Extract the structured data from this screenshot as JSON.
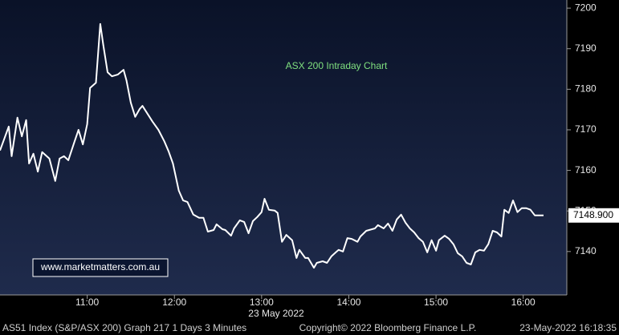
{
  "chart_data": {
    "type": "line",
    "title": "ASX 200 Intraday Chart",
    "watermark": "www.marketmatters.com.au",
    "x_label": "23 May 2022",
    "footer": {
      "left": "AS51 Index (S&P/ASX 200) Graph 217 1 Days 3 Minutes",
      "center": "Copyright© 2022 Bloomberg Finance L.P.",
      "right": "23-May-2022 16:18:35"
    },
    "last_value": {
      "value": 7148.9,
      "label": "7148.900"
    },
    "xlim": [
      600,
      990
    ],
    "xticks": [
      {
        "value": 660,
        "label": "11:00"
      },
      {
        "value": 720,
        "label": "12:00"
      },
      {
        "value": 780,
        "label": "13:00"
      },
      {
        "value": 840,
        "label": "14:00"
      },
      {
        "value": 900,
        "label": "15:00"
      },
      {
        "value": 960,
        "label": "16:00"
      }
    ],
    "ylim": [
      7129.3,
      7202
    ],
    "yticks": [
      7140,
      7150,
      7160,
      7170,
      7180,
      7190,
      7200
    ],
    "x": [
      600,
      606,
      608,
      612,
      615,
      618,
      620,
      623,
      626,
      629,
      634,
      638,
      641,
      644,
      647,
      651,
      654,
      657,
      660,
      662,
      666,
      669,
      671,
      674,
      677,
      681,
      685,
      687,
      690,
      693,
      696,
      698,
      702,
      705,
      709,
      713,
      716,
      719,
      723,
      726,
      729,
      733,
      737,
      740,
      743,
      747,
      749,
      753,
      755,
      759,
      761,
      765,
      768,
      771,
      774,
      777,
      780,
      782,
      785,
      789,
      791,
      794,
      797,
      801,
      804,
      806,
      810,
      812,
      816,
      818,
      822,
      825,
      828,
      831,
      833,
      836,
      839,
      842,
      846,
      848,
      852,
      854,
      858,
      860,
      864,
      867,
      870,
      873,
      876,
      879,
      882,
      885,
      888,
      891,
      894,
      897,
      900,
      902,
      906,
      909,
      912,
      915,
      918,
      921,
      924,
      927,
      930,
      933,
      936,
      939,
      942,
      945,
      947,
      950,
      953,
      956,
      959,
      962,
      965,
      968,
      972,
      974
    ],
    "series": [
      {
        "color": "#ffffff",
        "values": [
          7164.9,
          7170.8,
          7163.5,
          7173.0,
          7168.4,
          7172.4,
          7161.7,
          7164.1,
          7159.7,
          7164.5,
          7162.9,
          7157.4,
          7162.9,
          7163.5,
          7162.5,
          7166.8,
          7170.0,
          7166.4,
          7171.4,
          7180.3,
          7181.6,
          7196.1,
          7191.1,
          7184.2,
          7183.2,
          7183.6,
          7184.8,
          7182.2,
          7176.7,
          7173.2,
          7175.1,
          7175.9,
          7173.7,
          7172.0,
          7170.0,
          7167.2,
          7164.7,
          7161.7,
          7155.0,
          7152.6,
          7152.2,
          7149.1,
          7148.3,
          7148.3,
          7144.9,
          7145.3,
          7146.7,
          7145.5,
          7145.3,
          7143.9,
          7145.7,
          7147.7,
          7147.3,
          7144.5,
          7147.5,
          7148.5,
          7149.7,
          7153.0,
          7150.3,
          7150.1,
          7149.5,
          7142.4,
          7144.1,
          7142.8,
          7138.4,
          7140.4,
          7138.4,
          7138.4,
          7136.0,
          7137.2,
          7137.6,
          7137.2,
          7138.8,
          7139.8,
          7140.4,
          7140.0,
          7143.3,
          7143.1,
          7142.4,
          7143.7,
          7145.1,
          7145.3,
          7145.7,
          7146.5,
          7145.7,
          7146.9,
          7145.1,
          7147.9,
          7149.1,
          7147.1,
          7145.7,
          7144.7,
          7143.3,
          7142.4,
          7139.8,
          7142.8,
          7140.2,
          7142.8,
          7143.9,
          7143.1,
          7141.8,
          7139.6,
          7138.8,
          7137.2,
          7136.8,
          7139.8,
          7140.4,
          7140.2,
          7141.8,
          7145.1,
          7144.7,
          7143.7,
          7150.3,
          7149.5,
          7152.6,
          7149.7,
          7150.7,
          7150.7,
          7150.3,
          7148.9,
          7148.9,
          7148.9
        ]
      }
    ]
  }
}
